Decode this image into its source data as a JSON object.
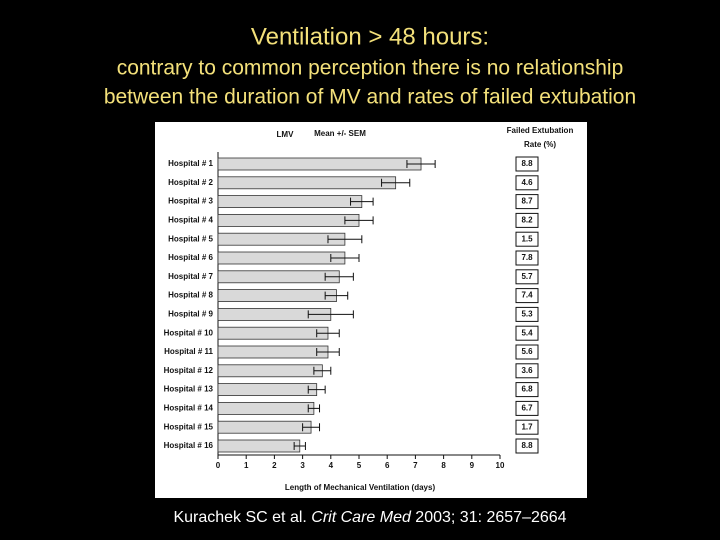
{
  "slide": {
    "title": "Ventilation > 48 hours:",
    "subtitle_lines": [
      "contrary to common perception there is no relationship",
      "between the duration of MV and rates of failed extubation"
    ],
    "citation": [
      "Kurachek SC et al. ",
      "Crit Care Med",
      " 2003; 31: 2657–2664"
    ]
  },
  "chart_data": {
    "type": "hbar",
    "title": "LMV",
    "subtitle": "Mean +/- SEM",
    "categories": [
      "Hospital # 1",
      "Hospital # 2",
      "Hospital # 3",
      "Hospital # 4",
      "Hospital # 5",
      "Hospital # 6",
      "Hospital # 7",
      "Hospital # 8",
      "Hospital # 9",
      "Hospital # 10",
      "Hospital # 11",
      "Hospital # 12",
      "Hospital # 13",
      "Hospital # 14",
      "Hospital # 15",
      "Hospital # 16"
    ],
    "values": [
      7.2,
      6.3,
      5.1,
      5.0,
      4.5,
      4.5,
      4.3,
      4.2,
      4.0,
      3.9,
      3.9,
      3.7,
      3.5,
      3.4,
      3.3,
      2.9
    ],
    "errors": [
      0.5,
      0.5,
      0.4,
      0.5,
      0.6,
      0.5,
      0.5,
      0.4,
      0.8,
      0.4,
      0.4,
      0.3,
      0.3,
      0.2,
      0.3,
      0.2
    ],
    "color": "#d9d9d9",
    "rate_header": [
      "Failed Extubation",
      "Rate (%)"
    ],
    "rates": [
      "8.8",
      "4.6",
      "8.7",
      "8.2",
      "1.5",
      "7.8",
      "5.7",
      "7.4",
      "5.3",
      "5.4",
      "5.6",
      "3.6",
      "6.8",
      "6.7",
      "1.7",
      "8.8"
    ],
    "xlabel": "Length of Mechanical Ventilation (days)",
    "xlim": [
      0,
      10
    ],
    "xticks": [
      0,
      1,
      2,
      3,
      4,
      5,
      6,
      7,
      8,
      9,
      10
    ]
  }
}
